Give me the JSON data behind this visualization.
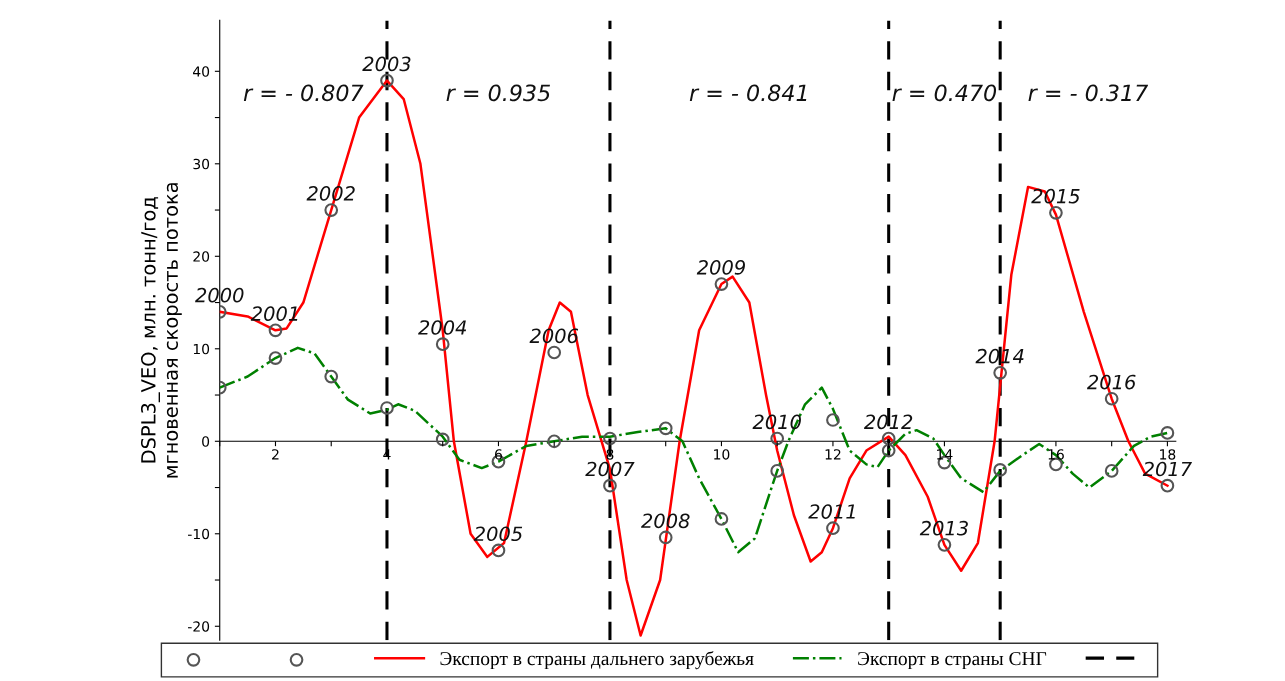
{
  "chart_data": {
    "type": "line",
    "ylabel": "DSPL3_VEO, млн. тонн/год\nмгновенная скорость потока",
    "xlim": [
      1,
      18.15
    ],
    "ylim": [
      -21.5,
      45.5
    ],
    "xticks": [
      {
        "value": 1,
        "label": null
      },
      2,
      {
        "value": 3,
        "label": null
      },
      4,
      {
        "value": 5,
        "label": null
      },
      6,
      {
        "value": 7,
        "label": null
      },
      8,
      {
        "value": 9,
        "label": null
      },
      10,
      {
        "value": 11,
        "label": null
      },
      12,
      {
        "value": 13,
        "label": null
      },
      14,
      {
        "value": 15,
        "label": null
      },
      16,
      {
        "value": 17,
        "label": null
      },
      18
    ],
    "yticks": [
      -20,
      {
        "value": -15,
        "label": null
      },
      -10,
      {
        "value": -5,
        "label": null
      },
      0,
      {
        "value": 5,
        "label": null
      },
      10,
      {
        "value": 15,
        "label": null
      },
      20,
      {
        "value": 25,
        "label": null
      },
      30,
      {
        "value": 35,
        "label": null
      },
      40
    ],
    "grid": false,
    "legend": "bottom",
    "series": [
      {
        "type": "scatter",
        "color": "#555555",
        "marker": "circle",
        "x": [
          1,
          2,
          3,
          4,
          5,
          6,
          7,
          8,
          9,
          10,
          11,
          12,
          13,
          14,
          15,
          16,
          17,
          18
        ],
        "values": [
          14,
          12,
          25,
          39,
          10.5,
          -11.8,
          9.6,
          -4.8,
          -10.4,
          17,
          0.3,
          -9.4,
          0.3,
          -11.2,
          7.4,
          24.7,
          4.6,
          -4.8
        ]
      },
      {
        "type": "scatter",
        "color": "#555555",
        "marker": "circle",
        "x": [
          1,
          2,
          3,
          4,
          5,
          6,
          7,
          8,
          9,
          10,
          11,
          12,
          13,
          14,
          15,
          16,
          17,
          18
        ],
        "values": [
          5.8,
          9,
          7,
          3.6,
          0.2,
          -2.2,
          0,
          0.3,
          1.4,
          -8.4,
          -3.2,
          2.3,
          -1,
          -2.3,
          -3.1,
          -2.5,
          -3.2,
          0.9
        ]
      },
      {
        "name": "Экспорт в страны дальнего зарубежья",
        "color": "#ff0000",
        "line_style": "solid",
        "marker": "none",
        "x": [
          1,
          1.5,
          2,
          2.2,
          2.5,
          3,
          3.5,
          4,
          4.3,
          4.6,
          5,
          5.2,
          5.5,
          5.8,
          6.1,
          6.5,
          6.9,
          7.1,
          7.3,
          7.6,
          8,
          8.3,
          8.55,
          8.9,
          9.25,
          9.6,
          10,
          10.2,
          10.5,
          10.8,
          11,
          11.3,
          11.6,
          11.8,
          12,
          12.3,
          12.6,
          13,
          13.3,
          13.7,
          14,
          14.3,
          14.6,
          14.9,
          15,
          15.2,
          15.5,
          15.8,
          16,
          16.5,
          17,
          17.3,
          17.6,
          18
        ],
        "values": [
          14,
          13.5,
          12,
          12.2,
          15,
          25,
          35,
          39,
          37,
          30,
          12,
          0,
          -10,
          -12.5,
          -11,
          0,
          12,
          15,
          14,
          5,
          -3,
          -15,
          -21,
          -15,
          0,
          12,
          17,
          17.8,
          15,
          5,
          -1,
          -8,
          -13,
          -12,
          -9.4,
          -4,
          -1,
          0.5,
          -1.5,
          -6,
          -11.2,
          -14,
          -11,
          0,
          6,
          18,
          27.5,
          27,
          24.5,
          14,
          4.6,
          0,
          -3.5,
          -4.8
        ]
      },
      {
        "name": "Экспорт в страны СНГ",
        "color": "#008000",
        "line_style": "dashdot",
        "marker": "none",
        "x": [
          1,
          1.5,
          2,
          2.4,
          2.7,
          3,
          3.3,
          3.7,
          4,
          4.2,
          4.5,
          5,
          5.3,
          5.7,
          6,
          6.5,
          7,
          7.5,
          8,
          8.5,
          9,
          9.3,
          9.6,
          10,
          10.3,
          10.6,
          10.9,
          11,
          11.2,
          11.5,
          11.8,
          12,
          12.3,
          12.6,
          12.8,
          13,
          13.3,
          13.5,
          13.8,
          14,
          14.3,
          14.7,
          15,
          15.4,
          15.7,
          16,
          16.3,
          16.6,
          17,
          17.4,
          17.7,
          18
        ],
        "values": [
          5.8,
          7,
          9,
          10.1,
          9.5,
          7,
          4.5,
          3,
          3.4,
          4,
          3.3,
          0.5,
          -2,
          -2.9,
          -2.2,
          -0.5,
          0,
          0.5,
          0.5,
          1,
          1.4,
          0,
          -4,
          -8.4,
          -12,
          -10.5,
          -5,
          -3.2,
          0,
          4,
          5.8,
          3.5,
          -1,
          -2.5,
          -2.8,
          -1,
          0.8,
          1.2,
          0.3,
          -1.5,
          -4,
          -5.5,
          -3.2,
          -1.5,
          -0.3,
          -1.5,
          -3.5,
          -5,
          -3.2,
          -0.5,
          0.5,
          0.9
        ]
      }
    ],
    "ref_lines": [
      {
        "axis": "x",
        "value": 4,
        "color": "#000000",
        "line_style": "dashed"
      },
      {
        "axis": "x",
        "value": 8,
        "color": "#000000",
        "line_style": "dashed"
      },
      {
        "axis": "x",
        "value": 13,
        "color": "#000000",
        "line_style": "dashed"
      },
      {
        "axis": "x",
        "value": 15,
        "color": "#000000",
        "line_style": "dashed"
      }
    ],
    "annotations": [
      "r = - 0.807",
      "r = 0.935",
      "r = - 0.841",
      "r = 0.470",
      "r = - 0.317",
      {
        "text": "2000",
        "x": 1,
        "y": 14
      },
      {
        "text": "2001",
        "x": 2,
        "y": 12
      },
      {
        "text": "2002",
        "x": 3,
        "y": 25
      },
      {
        "text": "2003",
        "x": 4,
        "y": 39
      },
      {
        "text": "2004",
        "x": 5,
        "y": 10.5
      },
      {
        "text": "2005",
        "x": 6,
        "y": -11.8
      },
      {
        "text": "2006",
        "x": 7,
        "y": 9.6
      },
      {
        "text": "2007",
        "x": 8,
        "y": -4.8
      },
      {
        "text": "2008",
        "x": 9,
        "y": -10.4
      },
      {
        "text": "2010",
        "x": 11,
        "y": 0.3
      },
      {
        "text": "2009",
        "x": 10,
        "y": 17
      },
      {
        "text": "2011",
        "x": 12,
        "y": -9.4
      },
      {
        "text": "2012",
        "x": 13,
        "y": 0.3
      },
      {
        "text": "2013",
        "x": 14,
        "y": -11.2
      },
      {
        "text": "2014",
        "x": 15,
        "y": 7.4
      },
      {
        "text": "2015",
        "x": 16,
        "y": 24.7
      },
      {
        "text": "2016",
        "x": 17,
        "y": 4.6
      },
      {
        "text": "2017",
        "x": 18,
        "y": -4.8
      }
    ]
  }
}
